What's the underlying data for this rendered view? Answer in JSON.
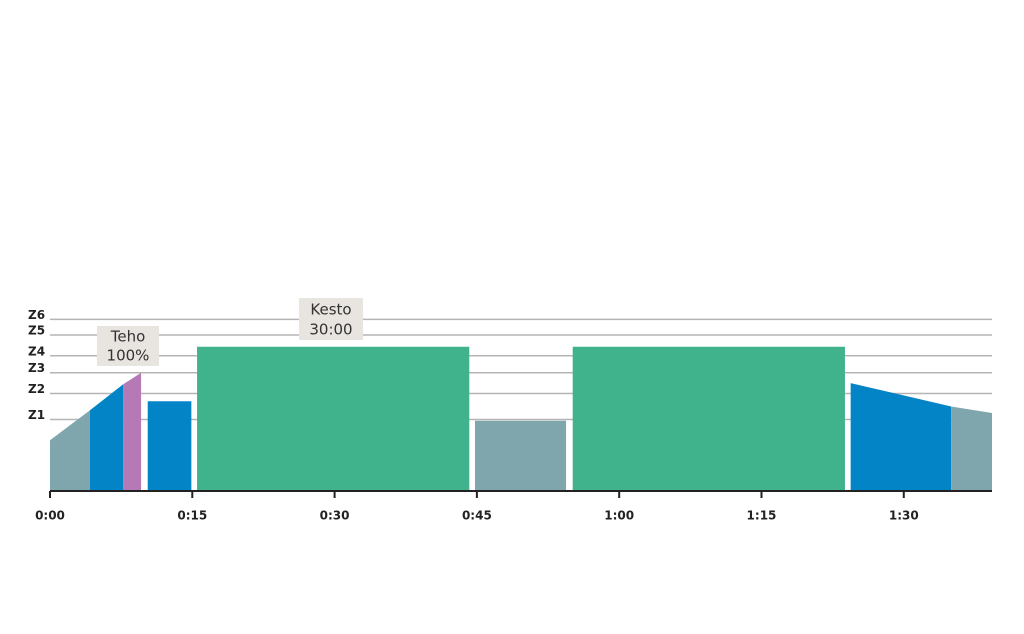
{
  "chart_data": {
    "type": "workout",
    "xlim": [
      0,
      99.3
    ],
    "ylim": [
      0,
      150
    ],
    "xticks": [
      {
        "value": 0,
        "label": "0:00"
      },
      {
        "value": 15,
        "label": "0:15"
      },
      {
        "value": 30,
        "label": "0:30"
      },
      {
        "value": 45,
        "label": "0:45"
      },
      {
        "value": 60,
        "label": "1:00"
      },
      {
        "value": 75,
        "label": "1:15"
      },
      {
        "value": 90,
        "label": "1:30"
      }
    ],
    "yticks": [
      {
        "value": 55,
        "label": "Z1"
      },
      {
        "value": 75,
        "label": "Z2"
      },
      {
        "value": 91,
        "label": "Z3"
      },
      {
        "value": 104,
        "label": "Z4"
      },
      {
        "value": 120,
        "label": "Z5"
      },
      {
        "value": 132,
        "label": "Z6"
      }
    ],
    "grid": true,
    "segments": [
      {
        "x0": 0,
        "x1": 4.2,
        "y0": 39,
        "y1": 62,
        "color": "#7fa6ad"
      },
      {
        "x0": 4.2,
        "x1": 7.7,
        "y0": 62,
        "y1": 82,
        "color": "#0284c7"
      },
      {
        "x0": 7.7,
        "x1": 9.6,
        "y0": 82,
        "y1": 91,
        "color": "#b57ab5"
      },
      {
        "x0": 10.3,
        "x1": 14.9,
        "y0": 69,
        "y1": 69,
        "color": "#0284c7"
      },
      {
        "x0": 15.5,
        "x1": 44.2,
        "y0": 111,
        "y1": 111,
        "color": "#40b38d"
      },
      {
        "x0": 44.8,
        "x1": 54.4,
        "y0": 54,
        "y1": 54,
        "color": "#7fa6ad"
      },
      {
        "x0": 55.1,
        "x1": 83.8,
        "y0": 111,
        "y1": 111,
        "color": "#40b38d"
      },
      {
        "x0": 84.4,
        "x1": 95,
        "y0": 83,
        "y1": 65,
        "color": "#0284c7"
      },
      {
        "x0": 95,
        "x1": 99.3,
        "y0": 65,
        "y1": 60,
        "color": "#7fa6ad"
      }
    ],
    "annotations": [
      {
        "lines": [
          "Teho",
          "100%"
        ]
      },
      {
        "lines": [
          "Kesto",
          "30:00"
        ]
      }
    ]
  }
}
